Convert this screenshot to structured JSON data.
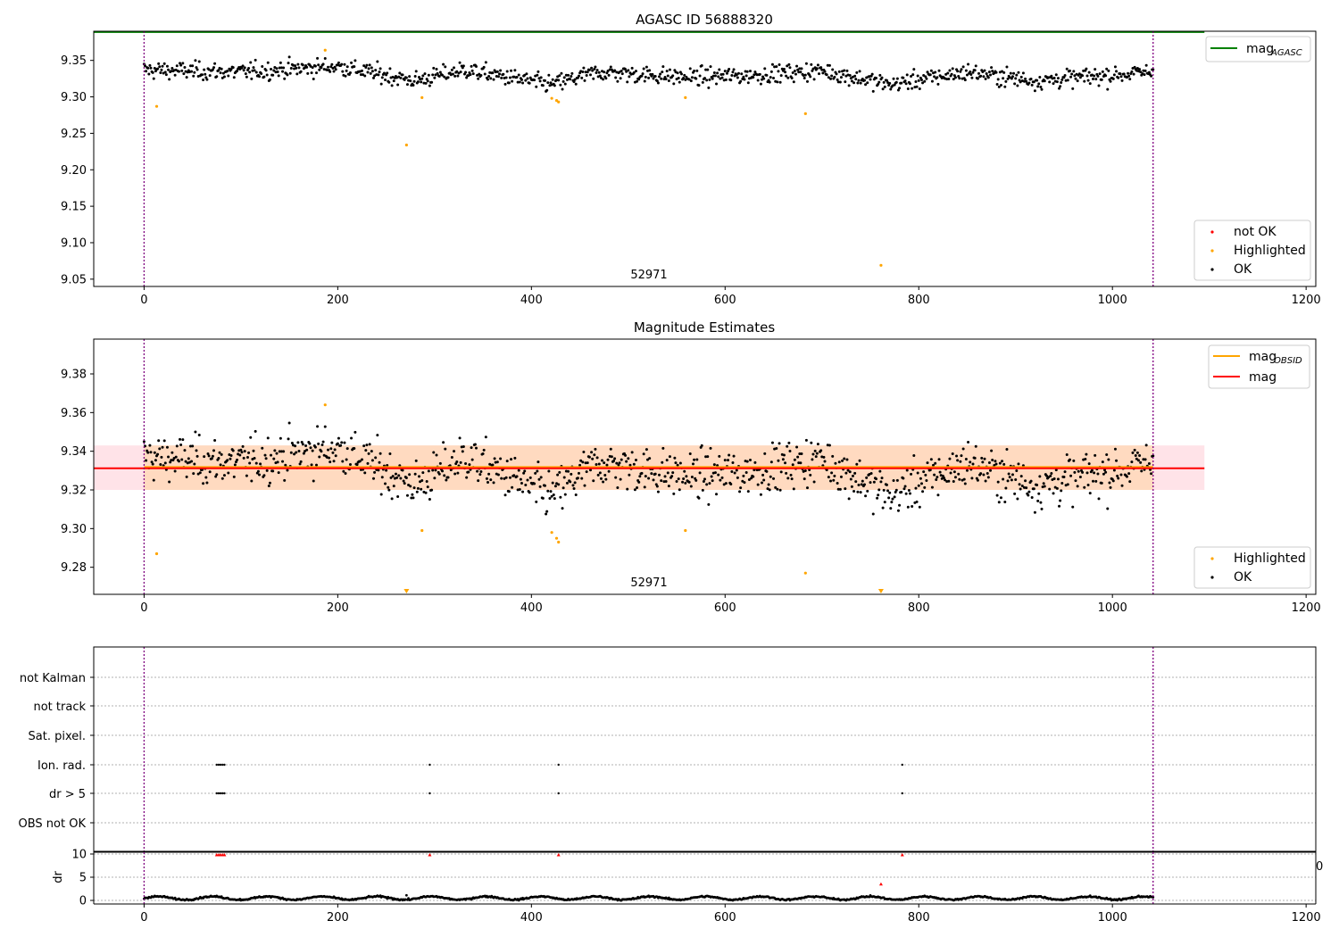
{
  "chart_data": [
    {
      "type": "scatter",
      "title": "AGASC ID 56888320",
      "xlabel": "",
      "ylabel": "",
      "xlim": [
        -52,
        1210
      ],
      "ylim": [
        9.04,
        9.39
      ],
      "x_ticks": [
        0,
        200,
        400,
        600,
        800,
        1000,
        1200
      ],
      "y_ticks": [
        9.05,
        9.1,
        9.15,
        9.2,
        9.25,
        9.3,
        9.35
      ],
      "y_tick_labels": [
        "9.05",
        "9.10",
        "9.15",
        "9.20",
        "9.25",
        "9.30",
        "9.35"
      ],
      "annotation": "52971",
      "annotation_x": 520,
      "vlines": [
        0,
        1042
      ],
      "reference_lines": [
        {
          "name": "mag",
          "sub": "AGASC",
          "y": 9.389,
          "x": [
            -52,
            1095
          ],
          "color": "#008000"
        }
      ],
      "legends": [
        {
          "placement": "top-right",
          "entries": [
            {
              "label": "mag",
              "sub": "AGASC",
              "kind": "line",
              "color": "#008000"
            }
          ]
        },
        {
          "placement": "lower-right",
          "entries": [
            {
              "label": "not OK",
              "kind": "dot",
              "color": "#ff0000"
            },
            {
              "label": "Highlighted",
              "kind": "dot",
              "color": "#ffa500"
            },
            {
              "label": "OK",
              "kind": "dot",
              "color": "#000000"
            }
          ]
        }
      ],
      "series": [
        {
          "name": "OK",
          "color": "#000000",
          "description": "dense scatter of ~1040 samples, mean 9.331, spread about ±0.02",
          "x_range": [
            0,
            1042
          ],
          "mean": 9.331,
          "sigma": 0.01,
          "trend_x": [
            0,
            100,
            200,
            280,
            330,
            420,
            470,
            560,
            620,
            700,
            770,
            850,
            920,
            1042
          ],
          "trend_y": [
            9.337,
            9.334,
            9.342,
            9.322,
            9.337,
            9.317,
            9.334,
            9.327,
            9.329,
            9.336,
            9.317,
            9.334,
            9.322,
            9.334
          ]
        },
        {
          "name": "Highlighted",
          "color": "#ffa500",
          "points": [
            [
              13,
              9.287
            ],
            [
              187,
              9.364
            ],
            [
              271,
              9.234
            ],
            [
              287,
              9.299
            ],
            [
              421,
              9.298
            ],
            [
              426,
              9.295
            ],
            [
              428,
              9.293
            ],
            [
              559,
              9.299
            ],
            [
              683,
              9.277
            ],
            [
              761,
              9.069
            ]
          ]
        }
      ]
    },
    {
      "type": "scatter",
      "title": "Magnitude Estimates",
      "xlabel": "",
      "ylabel": "",
      "xlim": [
        -52,
        1210
      ],
      "ylim": [
        9.266,
        9.398
      ],
      "x_ticks": [
        0,
        200,
        400,
        600,
        800,
        1000,
        1200
      ],
      "y_ticks": [
        9.28,
        9.3,
        9.32,
        9.34,
        9.36,
        9.38
      ],
      "y_tick_labels": [
        "9.28",
        "9.30",
        "9.32",
        "9.34",
        "9.36",
        "9.38"
      ],
      "annotation": "52971",
      "annotation_x": 520,
      "vlines": [
        0,
        1042
      ],
      "bands": [
        {
          "y": [
            9.32,
            9.343
          ],
          "x": [
            -52,
            1095
          ],
          "color": "#ffc0cb"
        },
        {
          "y": [
            9.32,
            9.343
          ],
          "x": [
            0,
            1042
          ],
          "color": "#ffd8b8"
        }
      ],
      "reference_lines": [
        {
          "name": "mag",
          "sub": "OBSID",
          "y": 9.3318,
          "x": [
            0,
            1042
          ],
          "color": "#ffa500"
        },
        {
          "name": "mag",
          "sub": "",
          "y": 9.3312,
          "x": [
            -52,
            1095
          ],
          "color": "#ff0000"
        }
      ],
      "legends": [
        {
          "placement": "top-right",
          "entries": [
            {
              "label": "mag",
              "sub": "OBSID",
              "kind": "line",
              "color": "#ffa500"
            },
            {
              "label": "mag",
              "sub": "",
              "kind": "line",
              "color": "#ff0000"
            }
          ]
        },
        {
          "placement": "lower-right",
          "entries": [
            {
              "label": "Highlighted",
              "kind": "dot",
              "color": "#ffa500"
            },
            {
              "label": "OK",
              "kind": "dot",
              "color": "#000000"
            }
          ]
        }
      ],
      "series": [
        {
          "name": "OK",
          "color": "#000000",
          "description": "same samples as above plot, mean 9.331",
          "x_range": [
            0,
            1042
          ],
          "mean": 9.331,
          "sigma": 0.01,
          "trend_x": [
            0,
            100,
            200,
            280,
            330,
            420,
            470,
            560,
            620,
            700,
            770,
            850,
            920,
            1042
          ],
          "trend_y": [
            9.337,
            9.334,
            9.342,
            9.322,
            9.337,
            9.317,
            9.334,
            9.327,
            9.329,
            9.336,
            9.317,
            9.334,
            9.322,
            9.334
          ]
        },
        {
          "name": "Highlighted",
          "color": "#ffa500",
          "points": [
            [
              13,
              9.287
            ],
            [
              187,
              9.364
            ],
            [
              287,
              9.299
            ],
            [
              421,
              9.298
            ],
            [
              426,
              9.295
            ],
            [
              428,
              9.293
            ],
            [
              559,
              9.299
            ],
            [
              683,
              9.277
            ]
          ],
          "below_range_markers": [
            [
              271,
              "v"
            ],
            [
              761,
              "v"
            ]
          ]
        }
      ]
    },
    {
      "type": "scatter",
      "title": "",
      "xlabel": "",
      "ylabel": "",
      "xlim": [
        -52,
        1210
      ],
      "categories": [
        "not Kalman",
        "not track",
        "Sat. pixel.",
        "Ion. rad.",
        "dr > 5",
        "OBS not OK"
      ],
      "vlines": [
        0,
        1042
      ],
      "flags": [
        {
          "category": "Ion. rad.",
          "x": [
            75,
            77,
            79,
            81,
            83,
            295,
            428,
            783
          ]
        },
        {
          "category": "dr > 5",
          "x": [
            75,
            77,
            79,
            81,
            83,
            295,
            428,
            783
          ]
        }
      ]
    },
    {
      "type": "scatter",
      "title": "",
      "xlabel": "",
      "ylabel": "dr",
      "xlim": [
        -52,
        1210
      ],
      "ylim": [
        -0.5,
        10.3
      ],
      "x_ticks": [
        0,
        200,
        400,
        600,
        800,
        1000,
        1200
      ],
      "y_ticks": [
        0,
        5,
        10
      ],
      "y_tick_labels": [
        "0",
        "5",
        "10"
      ],
      "x_tick_labels": [
        "0",
        "200",
        "400",
        "600",
        "800",
        "1000",
        "1200"
      ],
      "stray_label": "0",
      "vlines": [
        0,
        1042
      ],
      "series": [
        {
          "name": "dr",
          "color": "#000000",
          "description": "dense line of samples around 0.5 with small bumps",
          "x_range": [
            0,
            1042
          ],
          "mean": 0.5
        },
        {
          "name": "clipped",
          "color": "#ff0000",
          "points": [
            [
              75,
              9.8
            ],
            [
              77,
              9.8
            ],
            [
              79,
              9.8
            ],
            [
              81,
              9.8
            ],
            [
              83,
              9.8
            ],
            [
              295,
              9.8
            ],
            [
              428,
              9.8
            ],
            [
              761,
              3.5
            ],
            [
              783,
              9.8
            ]
          ]
        }
      ]
    }
  ]
}
